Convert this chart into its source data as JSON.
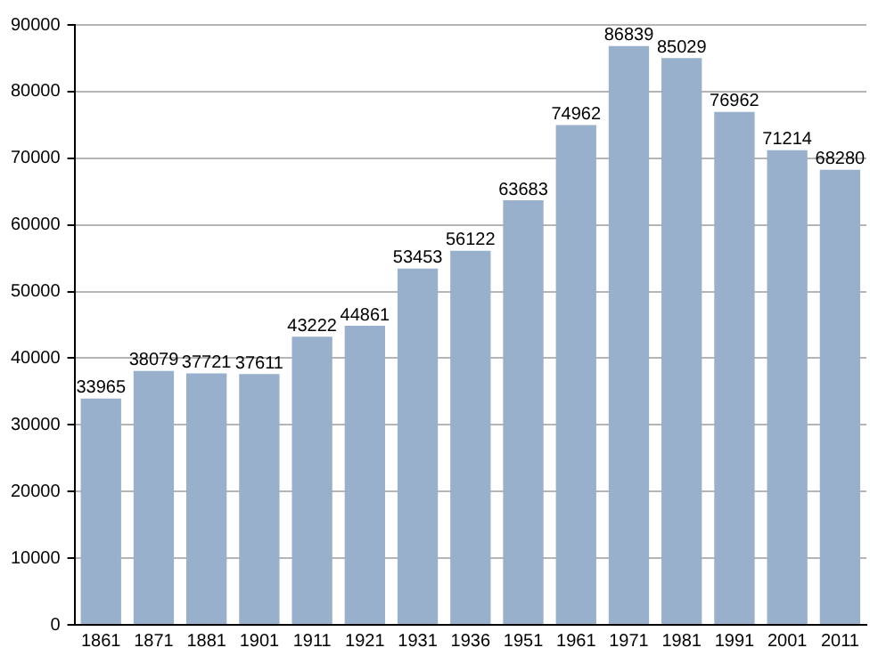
{
  "chart_data": {
    "type": "bar",
    "categories": [
      "1861",
      "1871",
      "1881",
      "1901",
      "1911",
      "1921",
      "1931",
      "1936",
      "1951",
      "1961",
      "1971",
      "1981",
      "1991",
      "2001",
      "2011"
    ],
    "values": [
      33965,
      38079,
      37721,
      37611,
      43222,
      44861,
      53453,
      56122,
      63683,
      74962,
      86839,
      85029,
      76962,
      71214,
      68280
    ],
    "color": "#98b0cb",
    "ylim": [
      0,
      90000
    ],
    "yticks": [
      0,
      10000,
      20000,
      30000,
      40000,
      50000,
      60000,
      70000,
      80000,
      90000
    ],
    "grid": "y",
    "data_labels": true
  }
}
